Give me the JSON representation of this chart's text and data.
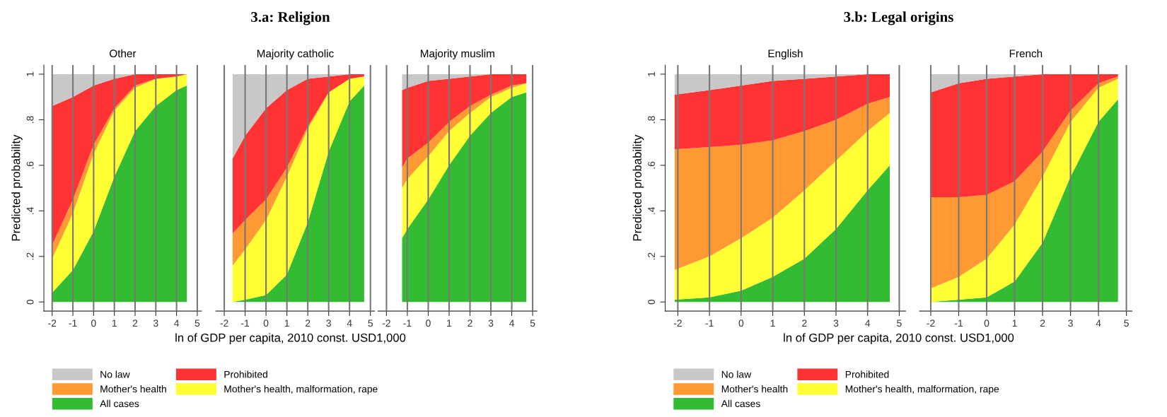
{
  "chart_data": [
    {
      "type": "area",
      "stacked": true,
      "subtitle": "Other",
      "ylabel": "Predicted probability",
      "grid": "x",
      "legend": "bottom",
      "x": [
        -2,
        -1,
        0,
        1,
        2,
        3,
        4,
        4.5
      ],
      "xlim": [
        -2.4,
        5.2
      ],
      "xticks": [
        -2,
        -1,
        0,
        1,
        2,
        3,
        4,
        5
      ],
      "ylim": [
        -0.04,
        1.04
      ],
      "yticks": [
        0,
        {
          "value": 0.2,
          "label": ".2"
        },
        {
          "value": 0.4,
          "label": ".4"
        },
        {
          "value": 0.6,
          "label": ".6"
        },
        {
          "value": 0.8,
          "label": ".8"
        },
        1
      ],
      "series": [
        {
          "name": "All cases",
          "color": "#33bb33",
          "values": [
            0.04,
            0.14,
            0.31,
            0.55,
            0.75,
            0.86,
            0.93,
            0.95
          ]
        },
        {
          "name": "Mother's health, malformation, rape",
          "color": "#ffff33",
          "values": [
            0.15,
            0.25,
            0.34,
            0.29,
            0.19,
            0.12,
            0.06,
            0.05
          ]
        },
        {
          "name": "Mother's health",
          "color": "#ff9933",
          "values": [
            0.06,
            0.06,
            0.04,
            0.01,
            0.01,
            0,
            0,
            0
          ]
        },
        {
          "name": "Prohibited",
          "color": "#ff3333",
          "values": [
            0.61,
            0.45,
            0.26,
            0.13,
            0.05,
            0.02,
            0.01,
            0
          ]
        },
        {
          "name": "No law",
          "color": "#c8c8c8",
          "values": [
            0.14,
            0.1,
            0.05,
            0.02,
            0,
            0,
            0,
            0
          ]
        }
      ]
    },
    {
      "type": "area",
      "stacked": true,
      "title": "3.a: Religion",
      "subtitle": "Majority catholic",
      "xlabel": "ln of GDP per capita, 2010 const. USD1,000",
      "grid": "x",
      "tick_labels": "x",
      "x": [
        -1.6,
        -1,
        0,
        1,
        2,
        3,
        4,
        4.7
      ],
      "xlim": [
        -2.4,
        5.2
      ],
      "xticks": [
        -2,
        -1,
        0,
        1,
        2,
        3,
        4,
        5
      ],
      "ylim": [
        -0.04,
        1.04
      ],
      "series": [
        {
          "color": "#33bb33",
          "values": [
            0,
            0.01,
            0.03,
            0.12,
            0.35,
            0.66,
            0.88,
            0.95
          ]
        },
        {
          "color": "#ffff33",
          "values": [
            0.16,
            0.22,
            0.33,
            0.43,
            0.41,
            0.26,
            0.1,
            0.04
          ]
        },
        {
          "color": "#ff9933",
          "values": [
            0.14,
            0.13,
            0.09,
            0.04,
            0.01,
            0,
            0,
            0
          ]
        },
        {
          "color": "#ff3333",
          "values": [
            0.33,
            0.37,
            0.4,
            0.34,
            0.21,
            0.07,
            0.02,
            0.01
          ]
        },
        {
          "color": "#c8c8c8",
          "values": [
            0.37,
            0.27,
            0.15,
            0.07,
            0.02,
            0.01,
            0,
            0
          ]
        }
      ]
    },
    {
      "type": "area",
      "stacked": true,
      "subtitle": "Majority muslim",
      "grid": "x",
      "tick_labels": "x",
      "x": [
        -1.25,
        -1,
        0,
        1,
        2,
        3,
        4,
        4.7
      ],
      "xlim": [
        -2.4,
        5.2
      ],
      "xticks": [
        -2,
        -1,
        0,
        1,
        2,
        3,
        4,
        5
      ],
      "ylim": [
        -0.04,
        1.04
      ],
      "series": [
        {
          "color": "#33bb33",
          "values": [
            0.28,
            0.32,
            0.45,
            0.6,
            0.73,
            0.83,
            0.9,
            0.92
          ]
        },
        {
          "color": "#ffff33",
          "values": [
            0.22,
            0.22,
            0.19,
            0.15,
            0.1,
            0.07,
            0.04,
            0.04
          ]
        },
        {
          "color": "#ff9933",
          "values": [
            0.09,
            0.09,
            0.06,
            0.04,
            0.03,
            0.01,
            0.01,
            0
          ]
        },
        {
          "color": "#ff3333",
          "values": [
            0.34,
            0.31,
            0.27,
            0.19,
            0.13,
            0.09,
            0.05,
            0.04
          ]
        },
        {
          "color": "#c8c8c8",
          "values": [
            0.07,
            0.06,
            0.03,
            0.02,
            0.01,
            0,
            0,
            0
          ]
        }
      ]
    },
    {
      "type": "area",
      "stacked": true,
      "title": "3.b: Legal origins",
      "subtitle": "English",
      "ylabel": "Predicted probability",
      "xlabel": "ln of GDP per capita, 2010 const. USD1,000",
      "grid": "x",
      "legend": "bottom",
      "x": [
        -2.1,
        -1,
        0,
        1,
        2,
        3,
        4,
        4.7
      ],
      "xlim": [
        -2.4,
        5.2
      ],
      "xticks": [
        -2,
        -1,
        0,
        1,
        2,
        3,
        4,
        5
      ],
      "ylim": [
        -0.04,
        1.04
      ],
      "yticks": [
        0,
        {
          "value": 0.2,
          "label": ".2"
        },
        {
          "value": 0.4,
          "label": ".4"
        },
        {
          "value": 0.6,
          "label": ".6"
        },
        {
          "value": 0.8,
          "label": ".8"
        },
        1
      ],
      "series": [
        {
          "name": "All cases",
          "color": "#33bb33",
          "values": [
            0.01,
            0.02,
            0.05,
            0.11,
            0.19,
            0.32,
            0.49,
            0.6
          ]
        },
        {
          "name": "Mother's health, malformation, rape",
          "color": "#ffff33",
          "values": [
            0.13,
            0.18,
            0.23,
            0.26,
            0.3,
            0.3,
            0.26,
            0.23
          ]
        },
        {
          "name": "Mother's health",
          "color": "#ff9933",
          "values": [
            0.53,
            0.48,
            0.41,
            0.34,
            0.26,
            0.18,
            0.12,
            0.07
          ]
        },
        {
          "name": "Prohibited",
          "color": "#ff3333",
          "values": [
            0.24,
            0.25,
            0.26,
            0.26,
            0.23,
            0.19,
            0.13,
            0.1
          ]
        },
        {
          "name": "No law",
          "color": "#c8c8c8",
          "values": [
            0.09,
            0.07,
            0.05,
            0.03,
            0.02,
            0.01,
            0,
            0
          ]
        }
      ]
    },
    {
      "type": "area",
      "stacked": true,
      "subtitle": "French",
      "grid": "x",
      "tick_labels": "x",
      "x": [
        -2,
        -1,
        0,
        1,
        2,
        3,
        4,
        4.7
      ],
      "xlim": [
        -2.4,
        5.2
      ],
      "xticks": [
        -2,
        -1,
        0,
        1,
        2,
        3,
        4,
        5
      ],
      "ylim": [
        -0.04,
        1.04
      ],
      "series": [
        {
          "color": "#33bb33",
          "values": [
            0,
            0.01,
            0.02,
            0.09,
            0.26,
            0.55,
            0.79,
            0.89
          ]
        },
        {
          "color": "#ffff33",
          "values": [
            0.06,
            0.1,
            0.17,
            0.25,
            0.29,
            0.24,
            0.15,
            0.09
          ]
        },
        {
          "color": "#ff9933",
          "values": [
            0.4,
            0.35,
            0.28,
            0.19,
            0.11,
            0.05,
            0.02,
            0.01
          ]
        },
        {
          "color": "#ff3333",
          "values": [
            0.46,
            0.5,
            0.51,
            0.46,
            0.34,
            0.16,
            0.04,
            0.01
          ]
        },
        {
          "color": "#c8c8c8",
          "values": [
            0.08,
            0.04,
            0.02,
            0.01,
            0,
            0,
            0,
            0
          ]
        }
      ]
    }
  ]
}
